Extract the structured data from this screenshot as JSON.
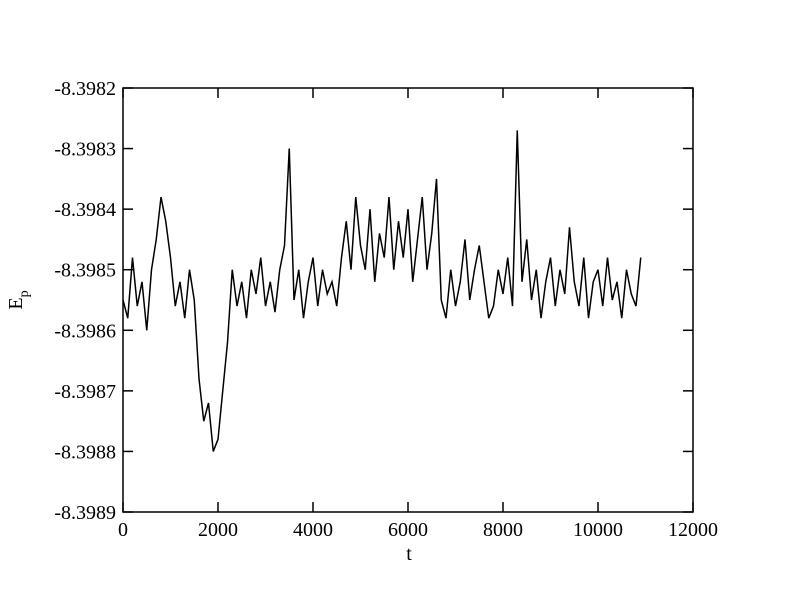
{
  "chart_data": {
    "type": "line",
    "xlabel": "t",
    "ylabel": "E",
    "ylabel_subscript": "p",
    "xlim": [
      0,
      12000
    ],
    "xticks": [
      0,
      2000,
      4000,
      6000,
      8000,
      10000,
      12000
    ],
    "ylim": [
      -8.3989,
      -8.3982
    ],
    "yticks": [
      -8.3989,
      -8.3988,
      -8.3987,
      -8.3986,
      -8.3985,
      -8.3984,
      -8.3983,
      -8.3982
    ],
    "color": "#000000",
    "x": [
      0,
      100,
      200,
      300,
      400,
      500,
      600,
      700,
      800,
      900,
      1000,
      1100,
      1200,
      1300,
      1400,
      1500,
      1600,
      1700,
      1800,
      1900,
      2000,
      2100,
      2200,
      2300,
      2400,
      2500,
      2600,
      2700,
      2800,
      2900,
      3000,
      3100,
      3200,
      3300,
      3400,
      3500,
      3600,
      3700,
      3800,
      3900,
      4000,
      4100,
      4200,
      4300,
      4400,
      4500,
      4600,
      4700,
      4800,
      4900,
      5000,
      5100,
      5200,
      5300,
      5400,
      5500,
      5600,
      5700,
      5800,
      5900,
      6000,
      6100,
      6200,
      6300,
      6400,
      6500,
      6600,
      6700,
      6800,
      6900,
      7000,
      7100,
      7200,
      7300,
      7400,
      7500,
      7600,
      7700,
      7800,
      7900,
      8000,
      8100,
      8200,
      8300,
      8400,
      8500,
      8600,
      8700,
      8800,
      8900,
      9000,
      9100,
      9200,
      9300,
      9400,
      9500,
      9600,
      9700,
      9800,
      9900,
      10000,
      10100,
      10200,
      10300,
      10400,
      10500,
      10600,
      10700,
      10800,
      10900
    ],
    "values": [
      -8.39855,
      -8.39858,
      -8.39848,
      -8.39856,
      -8.39852,
      -8.3986,
      -8.3985,
      -8.39845,
      -8.39838,
      -8.39842,
      -8.39848,
      -8.39856,
      -8.39852,
      -8.39858,
      -8.3985,
      -8.39855,
      -8.39868,
      -8.39875,
      -8.39872,
      -8.3988,
      -8.39878,
      -8.3987,
      -8.39862,
      -8.3985,
      -8.39856,
      -8.39852,
      -8.39858,
      -8.3985,
      -8.39854,
      -8.39848,
      -8.39856,
      -8.39852,
      -8.39857,
      -8.3985,
      -8.39846,
      -8.3983,
      -8.39855,
      -8.3985,
      -8.39858,
      -8.39852,
      -8.39848,
      -8.39856,
      -8.3985,
      -8.39854,
      -8.39852,
      -8.39856,
      -8.39848,
      -8.39842,
      -8.3985,
      -8.39838,
      -8.39846,
      -8.3985,
      -8.3984,
      -8.39852,
      -8.39844,
      -8.39848,
      -8.39838,
      -8.3985,
      -8.39842,
      -8.39848,
      -8.3984,
      -8.39852,
      -8.39845,
      -8.39838,
      -8.3985,
      -8.39844,
      -8.39835,
      -8.39855,
      -8.39858,
      -8.3985,
      -8.39856,
      -8.39852,
      -8.39845,
      -8.39855,
      -8.3985,
      -8.39846,
      -8.39852,
      -8.39858,
      -8.39856,
      -8.3985,
      -8.39854,
      -8.39848,
      -8.39856,
      -8.39827,
      -8.39852,
      -8.39845,
      -8.39855,
      -8.3985,
      -8.39858,
      -8.39852,
      -8.39848,
      -8.39856,
      -8.3985,
      -8.39854,
      -8.39843,
      -8.39852,
      -8.39856,
      -8.39848,
      -8.39858,
      -8.39852,
      -8.3985,
      -8.39856,
      -8.39848,
      -8.39855,
      -8.39852,
      -8.39858,
      -8.3985,
      -8.39854,
      -8.39856,
      -8.39848
    ]
  }
}
